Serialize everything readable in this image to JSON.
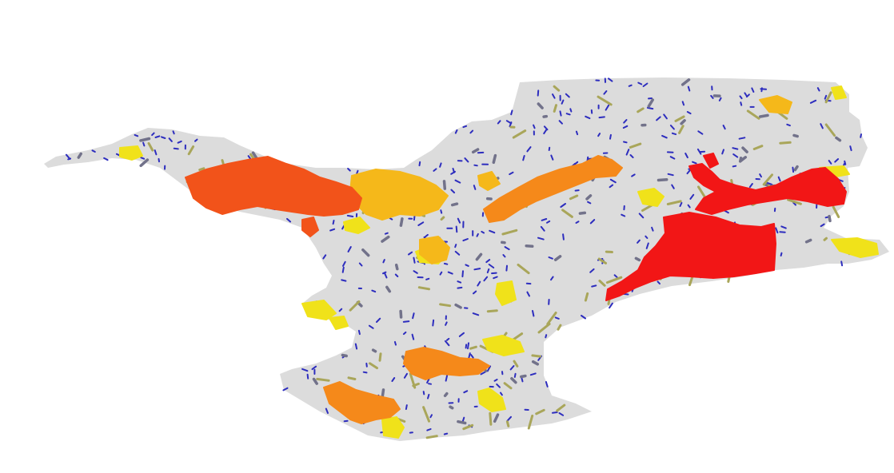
{
  "map": {
    "background_color": "#ffffff",
    "region_fill": "#dcdcdc",
    "classes": [
      {
        "id": "very-high",
        "color": "#f21616"
      },
      {
        "id": "high",
        "color": "#f2531a"
      },
      {
        "id": "medium-high",
        "color": "#f5891a"
      },
      {
        "id": "medium",
        "color": "#f5b81a"
      },
      {
        "id": "low",
        "color": "#f0e21a"
      },
      {
        "id": "olive",
        "color": "#a9a65a"
      },
      {
        "id": "grey",
        "color": "#72728a"
      },
      {
        "id": "small-blue",
        "color": "#2d2dbe"
      }
    ]
  }
}
